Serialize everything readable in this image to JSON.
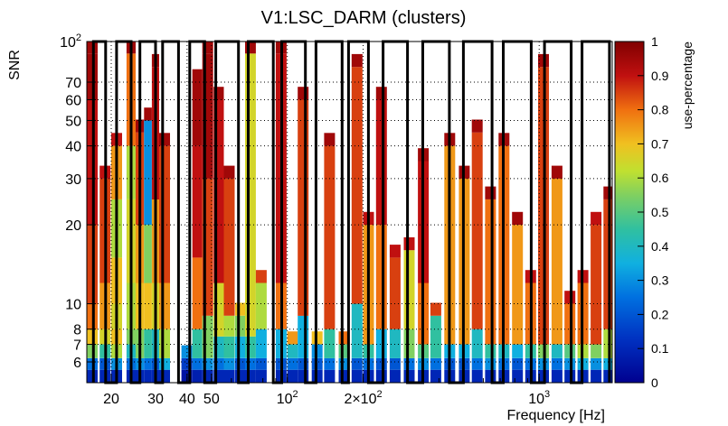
{
  "chart_data": {
    "type": "heatmap",
    "title": "V1:LSC_DARM (clusters)",
    "xlabel": "Frequency [Hz]",
    "ylabel": "SNR",
    "zlabel": "use-percentage",
    "x_scale": "log",
    "y_scale": "log",
    "xlim": [
      16,
      1950
    ],
    "ylim": [
      5,
      100
    ],
    "zlim": [
      0,
      1
    ],
    "grid": true,
    "x_ticks": [
      {
        "value": 20,
        "label": "20"
      },
      {
        "value": 30,
        "label": "30"
      },
      {
        "value": 40,
        "label": "40"
      },
      {
        "value": 50,
        "label": "50"
      },
      {
        "value": 100,
        "label": "10",
        "sup": "2"
      },
      {
        "value": 200,
        "label": "2×10",
        "sup": "2"
      },
      {
        "value": 1000,
        "label": "10",
        "sup": "3"
      }
    ],
    "y_ticks": [
      {
        "value": 6,
        "label": "6"
      },
      {
        "value": 7,
        "label": "7"
      },
      {
        "value": 8,
        "label": "8"
      },
      {
        "value": 10,
        "label": "10"
      },
      {
        "value": 20,
        "label": "20"
      },
      {
        "value": 30,
        "label": "30"
      },
      {
        "value": 40,
        "label": "40"
      },
      {
        "value": 50,
        "label": "50"
      },
      {
        "value": 60,
        "label": "60"
      },
      {
        "value": 70,
        "label": "70"
      },
      {
        "value": 100,
        "label": "10",
        "sup": "2"
      }
    ],
    "z_ticks": [
      "0",
      "0.1",
      "0.2",
      "0.3",
      "0.4",
      "0.5",
      "0.6",
      "0.7",
      "0.8",
      "0.9",
      "1"
    ],
    "cells": [
      [
        16,
        5,
        0.1
      ],
      [
        16,
        5.6,
        0.25
      ],
      [
        16,
        6.2,
        0.55
      ],
      [
        16,
        7,
        0.7
      ],
      [
        16,
        8,
        0.8
      ],
      [
        16,
        10,
        0.85
      ],
      [
        16,
        20,
        0.9
      ],
      [
        16,
        60,
        0.95
      ],
      [
        16,
        90,
        0.95
      ],
      [
        18,
        5,
        0.1
      ],
      [
        18,
        5.6,
        0.2
      ],
      [
        18,
        6.2,
        0.45
      ],
      [
        18,
        7,
        0.65
      ],
      [
        18,
        8,
        0.75
      ],
      [
        18,
        12,
        0.85
      ],
      [
        18,
        30,
        0.9
      ],
      [
        20,
        5,
        0.1
      ],
      [
        20,
        5.6,
        0.3
      ],
      [
        20,
        6.2,
        0.6
      ],
      [
        20,
        7,
        0.7
      ],
      [
        20,
        8,
        0.65
      ],
      [
        20,
        10,
        0.7
      ],
      [
        20,
        15,
        0.6
      ],
      [
        20,
        25,
        0.75
      ],
      [
        20,
        40,
        0.9
      ],
      [
        23,
        5,
        0.1
      ],
      [
        23,
        5.6,
        0.25
      ],
      [
        23,
        6.2,
        0.4
      ],
      [
        23,
        7,
        0.55
      ],
      [
        23,
        8,
        0.6
      ],
      [
        23,
        12,
        0.65
      ],
      [
        23,
        25,
        0.6
      ],
      [
        23,
        40,
        0.8
      ],
      [
        23,
        90,
        0.95
      ],
      [
        25,
        5,
        0.1
      ],
      [
        25,
        5.6,
        0.3
      ],
      [
        25,
        6.2,
        0.55
      ],
      [
        25,
        8,
        0.7
      ],
      [
        25,
        12,
        0.75
      ],
      [
        25,
        20,
        0.85
      ],
      [
        25,
        45,
        0.95
      ],
      [
        27,
        5,
        0.1
      ],
      [
        27,
        5.6,
        0.25
      ],
      [
        27,
        6.2,
        0.45
      ],
      [
        27,
        8,
        0.7
      ],
      [
        27,
        12,
        0.55
      ],
      [
        27,
        20,
        0.3
      ],
      [
        27,
        50,
        0.95
      ],
      [
        29,
        5,
        0.1
      ],
      [
        29,
        5.6,
        0.2
      ],
      [
        29,
        6.2,
        0.4
      ],
      [
        29,
        8,
        0.65
      ],
      [
        29,
        12,
        0.75
      ],
      [
        29,
        25,
        0.9
      ],
      [
        29,
        80,
        0.95
      ],
      [
        31,
        5,
        0.1
      ],
      [
        31,
        5.6,
        0.35
      ],
      [
        31,
        6.2,
        0.6
      ],
      [
        31,
        8,
        0.75
      ],
      [
        31,
        12,
        0.85
      ],
      [
        31,
        40,
        0.95
      ],
      [
        38,
        5,
        0.05
      ],
      [
        38,
        5.6,
        0.15
      ],
      [
        38,
        6.2,
        0.3
      ],
      [
        42,
        5,
        0.08
      ],
      [
        42,
        5.6,
        0.25
      ],
      [
        42,
        6.2,
        0.45
      ],
      [
        42,
        8,
        0.8
      ],
      [
        42,
        15,
        0.9
      ],
      [
        42,
        40,
        0.95
      ],
      [
        42,
        70,
        0.95
      ],
      [
        46,
        5,
        0.1
      ],
      [
        46,
        5.6,
        0.3
      ],
      [
        46,
        6.2,
        0.55
      ],
      [
        46,
        9,
        0.85
      ],
      [
        46,
        30,
        0.95
      ],
      [
        46,
        90,
        0.95
      ],
      [
        51,
        5,
        0.1
      ],
      [
        51,
        5.6,
        0.25
      ],
      [
        51,
        6.2,
        0.4
      ],
      [
        51,
        7.5,
        0.65
      ],
      [
        51,
        12,
        0.9
      ],
      [
        51,
        60,
        0.95
      ],
      [
        56,
        5,
        0.1
      ],
      [
        56,
        5.6,
        0.3
      ],
      [
        56,
        6.2,
        0.45
      ],
      [
        56,
        7.5,
        0.6
      ],
      [
        56,
        9,
        0.85
      ],
      [
        56,
        30,
        0.95
      ],
      [
        62,
        5,
        0.1
      ],
      [
        62,
        5.6,
        0.2
      ],
      [
        62,
        6.2,
        0.35
      ],
      [
        62,
        7.5,
        0.55
      ],
      [
        62,
        9,
        0.7
      ],
      [
        68,
        5,
        0.1
      ],
      [
        68,
        5.6,
        0.25
      ],
      [
        68,
        6.2,
        0.45
      ],
      [
        68,
        7.5,
        0.65
      ],
      [
        68,
        90,
        0.95
      ],
      [
        75,
        5,
        0.1
      ],
      [
        75,
        5.6,
        0.2
      ],
      [
        75,
        6.2,
        0.35
      ],
      [
        75,
        8,
        0.6
      ],
      [
        75,
        12,
        0.85
      ],
      [
        90,
        5,
        0.1
      ],
      [
        90,
        5.6,
        0.2
      ],
      [
        90,
        6.2,
        0.35
      ],
      [
        90,
        8,
        0.8
      ],
      [
        90,
        12,
        0.9
      ],
      [
        90,
        90,
        0.95
      ],
      [
        100,
        5,
        0.1
      ],
      [
        100,
        5.6,
        0.25
      ],
      [
        100,
        6.2,
        0.4
      ],
      [
        100,
        7,
        0.75
      ],
      [
        110,
        5,
        0.1
      ],
      [
        110,
        5.6,
        0.2
      ],
      [
        110,
        6.2,
        0.35
      ],
      [
        110,
        9,
        0.85
      ],
      [
        110,
        60,
        0.95
      ],
      [
        125,
        5,
        0.1
      ],
      [
        125,
        5.6,
        0.2
      ],
      [
        125,
        6.2,
        0.3
      ],
      [
        125,
        7,
        0.7
      ],
      [
        140,
        5,
        0.1
      ],
      [
        140,
        5.6,
        0.25
      ],
      [
        140,
        6.2,
        0.45
      ],
      [
        140,
        8,
        0.85
      ],
      [
        140,
        40,
        0.95
      ],
      [
        160,
        5,
        0.1
      ],
      [
        160,
        5.6,
        0.3
      ],
      [
        160,
        6.2,
        0.5
      ],
      [
        160,
        7,
        0.8
      ],
      [
        180,
        5,
        0.1
      ],
      [
        180,
        5.6,
        0.2
      ],
      [
        180,
        6.2,
        0.4
      ],
      [
        180,
        10,
        0.85
      ],
      [
        180,
        80,
        0.95
      ],
      [
        200,
        5,
        0.1
      ],
      [
        200,
        5.6,
        0.25
      ],
      [
        200,
        6.2,
        0.45
      ],
      [
        200,
        7,
        0.75
      ],
      [
        200,
        20,
        0.9
      ],
      [
        225,
        5,
        0.1
      ],
      [
        225,
        5.6,
        0.2
      ],
      [
        225,
        6.2,
        0.35
      ],
      [
        225,
        8,
        0.8
      ],
      [
        225,
        20,
        0.9
      ],
      [
        225,
        60,
        0.95
      ],
      [
        255,
        5,
        0.1
      ],
      [
        255,
        5.6,
        0.2
      ],
      [
        255,
        6.2,
        0.4
      ],
      [
        255,
        8,
        0.85
      ],
      [
        255,
        15,
        0.9
      ],
      [
        290,
        5,
        0.1
      ],
      [
        290,
        5.6,
        0.25
      ],
      [
        290,
        6.2,
        0.55
      ],
      [
        290,
        8,
        0.65
      ],
      [
        290,
        16,
        0.9
      ],
      [
        330,
        5,
        0.1
      ],
      [
        330,
        5.6,
        0.3
      ],
      [
        330,
        6.2,
        0.5
      ],
      [
        330,
        7,
        0.8
      ],
      [
        330,
        12,
        0.9
      ],
      [
        330,
        35,
        0.95
      ],
      [
        370,
        5,
        0.1
      ],
      [
        370,
        5.6,
        0.25
      ],
      [
        370,
        6.2,
        0.45
      ],
      [
        370,
        9,
        0.85
      ],
      [
        420,
        5,
        0.1
      ],
      [
        420,
        5.6,
        0.2
      ],
      [
        420,
        6.2,
        0.35
      ],
      [
        420,
        7,
        0.75
      ],
      [
        420,
        40,
        0.95
      ],
      [
        480,
        5,
        0.1
      ],
      [
        480,
        5.6,
        0.2
      ],
      [
        480,
        6.2,
        0.35
      ],
      [
        480,
        7,
        0.75
      ],
      [
        480,
        30,
        0.95
      ],
      [
        540,
        5,
        0.1
      ],
      [
        540,
        5.6,
        0.25
      ],
      [
        540,
        6.2,
        0.4
      ],
      [
        540,
        8,
        0.85
      ],
      [
        540,
        45,
        0.95
      ],
      [
        610,
        5,
        0.1
      ],
      [
        610,
        5.6,
        0.3
      ],
      [
        610,
        6.2,
        0.45
      ],
      [
        610,
        7,
        0.8
      ],
      [
        610,
        25,
        0.95
      ],
      [
        690,
        5,
        0.1
      ],
      [
        690,
        5.6,
        0.25
      ],
      [
        690,
        6.2,
        0.4
      ],
      [
        690,
        7,
        0.8
      ],
      [
        690,
        40,
        0.95
      ],
      [
        780,
        5,
        0.1
      ],
      [
        780,
        5.6,
        0.2
      ],
      [
        780,
        6.2,
        0.35
      ],
      [
        780,
        7,
        0.75
      ],
      [
        780,
        20,
        0.95
      ],
      [
        880,
        5,
        0.1
      ],
      [
        880,
        5.6,
        0.25
      ],
      [
        880,
        6.2,
        0.45
      ],
      [
        880,
        7,
        0.8
      ],
      [
        880,
        12,
        0.9
      ],
      [
        990,
        5,
        0.1
      ],
      [
        990,
        5.6,
        0.3
      ],
      [
        990,
        6.2,
        0.55
      ],
      [
        990,
        7,
        0.85
      ],
      [
        990,
        80,
        0.95
      ],
      [
        1120,
        5,
        0.1
      ],
      [
        1120,
        5.6,
        0.25
      ],
      [
        1120,
        6.2,
        0.4
      ],
      [
        1120,
        7,
        0.75
      ],
      [
        1120,
        30,
        0.95
      ],
      [
        1260,
        5,
        0.1
      ],
      [
        1260,
        5.6,
        0.3
      ],
      [
        1260,
        6.2,
        0.5
      ],
      [
        1260,
        7,
        0.8
      ],
      [
        1260,
        10,
        0.9
      ],
      [
        1420,
        5,
        0.1
      ],
      [
        1420,
        5.6,
        0.35
      ],
      [
        1420,
        6.2,
        0.6
      ],
      [
        1420,
        7,
        0.8
      ],
      [
        1420,
        12,
        0.9
      ],
      [
        1600,
        5,
        0.1
      ],
      [
        1600,
        5.6,
        0.3
      ],
      [
        1600,
        6.2,
        0.55
      ],
      [
        1600,
        7,
        0.85
      ],
      [
        1600,
        20,
        0.9
      ],
      [
        1800,
        5,
        0.1
      ],
      [
        1800,
        5.6,
        0.35
      ],
      [
        1800,
        6.2,
        0.6
      ],
      [
        1800,
        8,
        0.85
      ],
      [
        1800,
        25,
        0.95
      ]
    ],
    "cluster_outline": [
      [
        17,
        5
      ],
      [
        17,
        100
      ],
      [
        19,
        100
      ],
      [
        19,
        5
      ],
      [
        21,
        5
      ],
      [
        21,
        100
      ],
      [
        24,
        100
      ],
      [
        24,
        5
      ],
      [
        26,
        5
      ],
      [
        26,
        100
      ],
      [
        30,
        100
      ],
      [
        30,
        5
      ],
      [
        32,
        5
      ],
      [
        32,
        100
      ],
      [
        37,
        100
      ],
      [
        37,
        5
      ],
      [
        41,
        5
      ],
      [
        41,
        100
      ],
      [
        47,
        100
      ],
      [
        47,
        5
      ],
      [
        52,
        5
      ],
      [
        52,
        100
      ],
      [
        64,
        100
      ],
      [
        64,
        5
      ],
      [
        70,
        5
      ],
      [
        70,
        100
      ],
      [
        88,
        100
      ],
      [
        88,
        5
      ],
      [
        95,
        5
      ],
      [
        95,
        100
      ],
      [
        118,
        100
      ],
      [
        118,
        5
      ],
      [
        130,
        5
      ],
      [
        130,
        100
      ],
      [
        165,
        100
      ],
      [
        165,
        5
      ],
      [
        175,
        5
      ],
      [
        175,
        100
      ],
      [
        210,
        100
      ],
      [
        210,
        5
      ],
      [
        240,
        5
      ],
      [
        240,
        100
      ],
      [
        300,
        100
      ],
      [
        300,
        5
      ],
      [
        345,
        5
      ],
      [
        345,
        100
      ],
      [
        440,
        100
      ],
      [
        440,
        5
      ],
      [
        500,
        5
      ],
      [
        500,
        100
      ],
      [
        650,
        100
      ],
      [
        650,
        5
      ],
      [
        720,
        5
      ],
      [
        720,
        100
      ],
      [
        930,
        100
      ],
      [
        930,
        5
      ],
      [
        1050,
        5
      ],
      [
        1050,
        100
      ],
      [
        1340,
        100
      ],
      [
        1340,
        5
      ],
      [
        1480,
        5
      ],
      [
        1480,
        100
      ],
      [
        1900,
        100
      ],
      [
        1900,
        5
      ]
    ]
  }
}
